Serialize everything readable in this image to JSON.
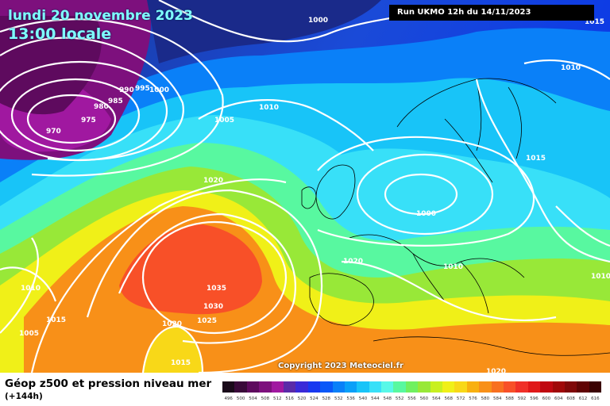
{
  "map": {
    "title_line1": "lundi 20 novembre 2023",
    "title_line2": "13:00 locale",
    "run_info": "Run UKMO 12h du 14/11/2023",
    "copyright": "Copyright 2023 Meteociel.fr",
    "isobar_labels": [
      "1000",
      "1015",
      "1010",
      "990",
      "995",
      "1000",
      "985",
      "980",
      "975",
      "970",
      "1005",
      "1010",
      "1020",
      "1015",
      "1000",
      "1020",
      "1010",
      "1035",
      "1030",
      "1025",
      "1020",
      "1015",
      "1010",
      "1005",
      "1015",
      "1010",
      "1020"
    ]
  },
  "legend": {
    "title": "Géop z500 et pression niveau mer",
    "subtitle": "(+144h)",
    "values": [
      "496",
      "500",
      "504",
      "508",
      "512",
      "516",
      "520",
      "524",
      "528",
      "532",
      "536",
      "540",
      "544",
      "548",
      "552",
      "556",
      "560",
      "564",
      "568",
      "572",
      "576",
      "580",
      "584",
      "588",
      "592",
      "596",
      "600",
      "604",
      "608",
      "612",
      "616"
    ],
    "colors": [
      "#1a0a1a",
      "#3a0a3a",
      "#5e0a5e",
      "#7d107d",
      "#a018a0",
      "#5a2aa8",
      "#3a2ad8",
      "#1838f0",
      "#0a58f8",
      "#0a80f8",
      "#0aa0f8",
      "#18c4f8",
      "#38e0f8",
      "#58f8e8",
      "#58f8a0",
      "#70f060",
      "#98e838",
      "#c8f020",
      "#f0f018",
      "#f8d818",
      "#f8b010",
      "#f89018",
      "#f87020",
      "#f85028",
      "#f03028",
      "#e01818",
      "#c00810",
      "#a00808",
      "#800808",
      "#600404",
      "#3a0202"
    ]
  }
}
